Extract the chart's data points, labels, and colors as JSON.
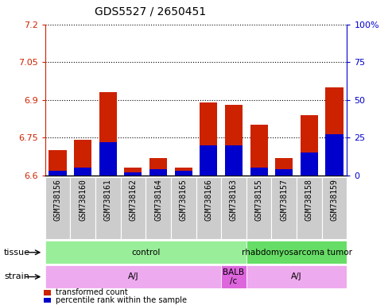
{
  "title": "GDS5527 / 2650451",
  "samples": [
    "GSM738156",
    "GSM738160",
    "GSM738161",
    "GSM738162",
    "GSM738164",
    "GSM738165",
    "GSM738166",
    "GSM738163",
    "GSM738155",
    "GSM738157",
    "GSM738158",
    "GSM738159"
  ],
  "transformed_counts": [
    6.7,
    6.74,
    6.93,
    6.63,
    6.67,
    6.63,
    6.89,
    6.88,
    6.8,
    6.67,
    6.84,
    6.95
  ],
  "percentile_ranks": [
    3,
    5,
    22,
    2,
    4,
    3,
    20,
    20,
    5,
    4,
    15,
    27
  ],
  "ymin": 6.6,
  "ymax": 7.2,
  "yticks": [
    6.6,
    6.75,
    6.9,
    7.05,
    7.2
  ],
  "ytick_labels": [
    "6.6",
    "6.75",
    "6.9",
    "7.05",
    "7.2"
  ],
  "y2min": 0,
  "y2max": 100,
  "y2ticks": [
    0,
    25,
    50,
    75,
    100
  ],
  "y2tick_labels": [
    "0",
    "25",
    "50",
    "75",
    "100%"
  ],
  "bar_color": "#cc2200",
  "percentile_color": "#0000cc",
  "bar_width": 0.7,
  "tissue_groups": [
    {
      "label": "control",
      "start": 0,
      "end": 8,
      "color": "#99ee99"
    },
    {
      "label": "rhabdomyosarcoma tumor",
      "start": 8,
      "end": 12,
      "color": "#66dd66"
    }
  ],
  "strain_groups": [
    {
      "label": "A/J",
      "start": 0,
      "end": 7,
      "color": "#eeaaee"
    },
    {
      "label": "BALB\n/c",
      "start": 7,
      "end": 8,
      "color": "#dd66dd"
    },
    {
      "label": "A/J",
      "start": 8,
      "end": 12,
      "color": "#eeaaee"
    }
  ],
  "legend_items": [
    {
      "color": "#cc2200",
      "label": "transformed count"
    },
    {
      "color": "#0000cc",
      "label": "percentile rank within the sample"
    }
  ],
  "axis_color_left": "#cc2200",
  "axis_color_right": "#0000cc",
  "title_fontsize": 10,
  "tick_fontsize": 8,
  "sample_fontsize": 7
}
